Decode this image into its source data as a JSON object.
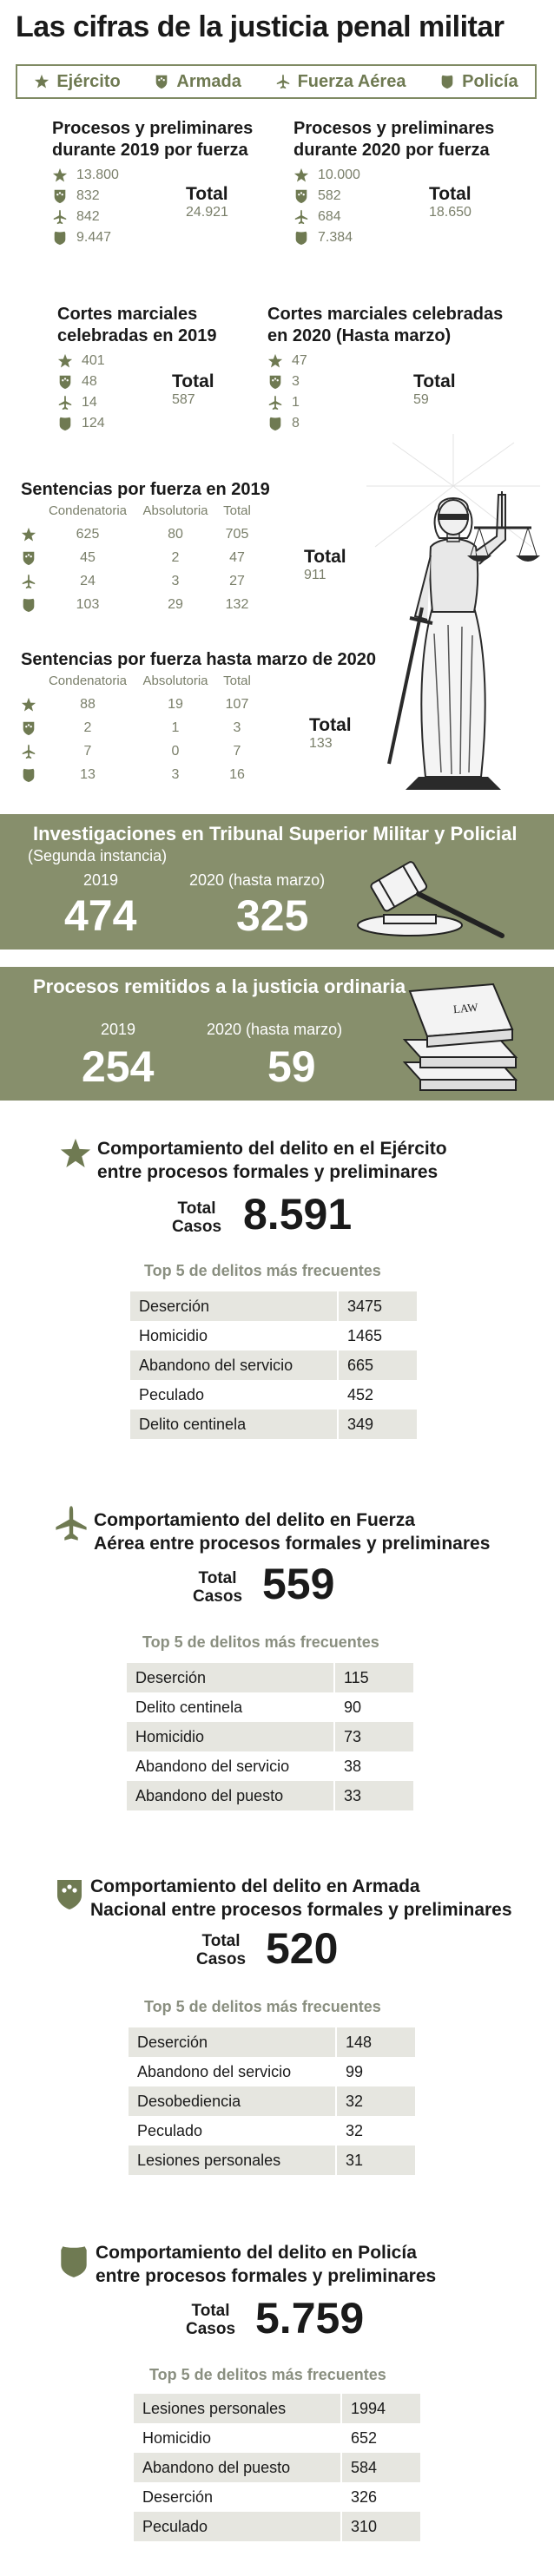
{
  "title": "Las cifras de la justicia penal militar",
  "legend": [
    {
      "label": "Ejército",
      "icon": "star-icon"
    },
    {
      "label": "Armada",
      "icon": "navy-shield-icon"
    },
    {
      "label": "Fuerza Aérea",
      "icon": "airplane-icon"
    },
    {
      "label": "Policía",
      "icon": "police-shield-icon"
    }
  ],
  "colors": {
    "accent": "#878f6c",
    "table_stripe": "#e6e6e0"
  },
  "procesos_2019": {
    "title_1": "Procesos y preliminares",
    "title_2": "durante 2019 por fuerza",
    "values": [
      "13.800",
      "832",
      "842",
      "9.447"
    ],
    "total_label": "Total",
    "total_value": "24.921"
  },
  "procesos_2020": {
    "title_1": "Procesos y preliminares",
    "title_2": "durante 2020 por fuerza",
    "values": [
      "10.000",
      "582",
      "684",
      "7.384"
    ],
    "total_label": "Total",
    "total_value": "18.650"
  },
  "cortes_2019": {
    "title_1": "Cortes marciales",
    "title_2": "celebradas en 2019",
    "values": [
      "401",
      "48",
      "14",
      "124"
    ],
    "total_label": "Total",
    "total_value": "587"
  },
  "cortes_2020": {
    "title_1": "Cortes marciales celebradas",
    "title_2": "en 2020 (Hasta marzo)",
    "values": [
      "47",
      "3",
      "1",
      "8"
    ],
    "total_label": "Total",
    "total_value": "59"
  },
  "sentencias_2019": {
    "title": "Sentencias por fuerza en 2019",
    "headers": [
      "Condenatoria",
      "Absolutoria",
      "Total"
    ],
    "rows": [
      [
        "625",
        "80",
        "705"
      ],
      [
        "45",
        "2",
        "47"
      ],
      [
        "24",
        "3",
        "27"
      ],
      [
        "103",
        "29",
        "132"
      ]
    ],
    "total_label": "Total",
    "total_value": "911"
  },
  "sentencias_2020": {
    "title": "Sentencias por fuerza hasta marzo de 2020",
    "headers": [
      "Condenatoria",
      "Absolutoria",
      "Total"
    ],
    "rows": [
      [
        "88",
        "19",
        "107"
      ],
      [
        "2",
        "1",
        "3"
      ],
      [
        "7",
        "0",
        "7"
      ],
      [
        "13",
        "3",
        "16"
      ]
    ],
    "total_label": "Total",
    "total_value": "133"
  },
  "investigaciones": {
    "title": "Investigaciones en Tribunal Superior Militar y Policial",
    "subtitle": "(Segunda instancia)",
    "label_2019": "2019",
    "value_2019": "474",
    "label_2020": "2020 (hasta marzo)",
    "value_2020": "325"
  },
  "remitidos": {
    "title": "Procesos remitidos a la justicia ordinaria",
    "label_2019": "2019",
    "value_2019": "254",
    "label_2020": "2020 (hasta marzo)",
    "value_2020": "59",
    "book_label": "LAW"
  },
  "comportamiento": [
    {
      "title_1": "Comportamiento del delito en el Ejército",
      "title_2": "entre procesos formales y preliminares",
      "total_1": "Total",
      "total_2": "Casos",
      "total_value": "8.591",
      "top5_label": "Top 5 de delitos más frecuentes",
      "rows": [
        [
          "Deserción",
          "3475"
        ],
        [
          "Homicidio",
          "1465"
        ],
        [
          "Abandono del servicio",
          "665"
        ],
        [
          "Peculado",
          "452"
        ],
        [
          "Delito centinela",
          "349"
        ]
      ]
    },
    {
      "title_1": "Comportamiento del delito en Fuerza",
      "title_2": "Aérea entre procesos formales y preliminares",
      "total_1": "Total",
      "total_2": "Casos",
      "total_value": "559",
      "top5_label": "Top 5 de delitos más frecuentes",
      "rows": [
        [
          "Deserción",
          "115"
        ],
        [
          "Delito centinela",
          "90"
        ],
        [
          "Homicidio",
          "73"
        ],
        [
          "Abandono del servicio",
          "38"
        ],
        [
          "Abandono del puesto",
          "33"
        ]
      ]
    },
    {
      "title_1": "Comportamiento del delito en Armada",
      "title_2": "Nacional entre procesos formales y preliminares",
      "total_1": "Total",
      "total_2": "Casos",
      "total_value": "520",
      "top5_label": "Top 5 de delitos más frecuentes",
      "rows": [
        [
          "Deserción",
          "148"
        ],
        [
          "Abandono del servicio",
          "99"
        ],
        [
          "Desobediencia",
          "32"
        ],
        [
          "Peculado",
          "32"
        ],
        [
          "Lesiones personales",
          "31"
        ]
      ]
    },
    {
      "title_1": "Comportamiento del delito en Policía",
      "title_2": "entre procesos formales y preliminares",
      "total_1": "Total",
      "total_2": "Casos",
      "total_value": "5.759",
      "top5_label": "Top 5 de delitos más frecuentes",
      "rows": [
        [
          "Lesiones personales",
          "1994"
        ],
        [
          "Homicidio",
          "652"
        ],
        [
          "Abandono del puesto",
          "584"
        ],
        [
          "Deserción",
          "326"
        ],
        [
          "Peculado",
          "310"
        ]
      ]
    }
  ],
  "chart_data": [
    {
      "type": "table",
      "title": "Procesos y preliminares durante 2019 por fuerza",
      "categories": [
        "Ejército",
        "Armada",
        "Fuerza Aérea",
        "Policía"
      ],
      "values": [
        13800,
        832,
        842,
        9447
      ],
      "total": 24921
    },
    {
      "type": "table",
      "title": "Procesos y preliminares durante 2020 por fuerza",
      "categories": [
        "Ejército",
        "Armada",
        "Fuerza Aérea",
        "Policía"
      ],
      "values": [
        10000,
        582,
        684,
        7384
      ],
      "total": 18650
    },
    {
      "type": "table",
      "title": "Cortes marciales celebradas en 2019",
      "categories": [
        "Ejército",
        "Armada",
        "Fuerza Aérea",
        "Policía"
      ],
      "values": [
        401,
        48,
        14,
        124
      ],
      "total": 587
    },
    {
      "type": "table",
      "title": "Cortes marciales celebradas en 2020 (Hasta marzo)",
      "categories": [
        "Ejército",
        "Armada",
        "Fuerza Aérea",
        "Policía"
      ],
      "values": [
        47,
        3,
        1,
        8
      ],
      "total": 59
    },
    {
      "type": "table",
      "title": "Sentencias por fuerza en 2019",
      "categories": [
        "Ejército",
        "Armada",
        "Fuerza Aérea",
        "Policía"
      ],
      "series": [
        {
          "name": "Condenatoria",
          "values": [
            625,
            45,
            24,
            103
          ]
        },
        {
          "name": "Absolutoria",
          "values": [
            80,
            2,
            3,
            29
          ]
        },
        {
          "name": "Total",
          "values": [
            705,
            47,
            27,
            132
          ]
        }
      ],
      "total": 911
    },
    {
      "type": "table",
      "title": "Sentencias por fuerza hasta marzo de 2020",
      "categories": [
        "Ejército",
        "Armada",
        "Fuerza Aérea",
        "Policía"
      ],
      "series": [
        {
          "name": "Condenatoria",
          "values": [
            88,
            2,
            7,
            13
          ]
        },
        {
          "name": "Absolutoria",
          "values": [
            19,
            1,
            0,
            3
          ]
        },
        {
          "name": "Total",
          "values": [
            107,
            3,
            7,
            16
          ]
        }
      ],
      "total": 133
    },
    {
      "type": "table",
      "title": "Investigaciones en Tribunal Superior Militar y Policial",
      "categories": [
        "2019",
        "2020 (hasta marzo)"
      ],
      "values": [
        474,
        325
      ]
    },
    {
      "type": "table",
      "title": "Procesos remitidos a la justicia ordinaria",
      "categories": [
        "2019",
        "2020 (hasta marzo)"
      ],
      "values": [
        254,
        59
      ]
    },
    {
      "type": "table",
      "title": "Comportamiento del delito en el Ejército entre procesos formales y preliminares",
      "categories": [
        "Deserción",
        "Homicidio",
        "Abandono del servicio",
        "Peculado",
        "Delito centinela"
      ],
      "values": [
        3475,
        1465,
        665,
        452,
        349
      ],
      "total": 8591
    },
    {
      "type": "table",
      "title": "Comportamiento del delito en Fuerza Aérea entre procesos formales y preliminares",
      "categories": [
        "Deserción",
        "Delito centinela",
        "Homicidio",
        "Abandono del servicio",
        "Abandono del puesto"
      ],
      "values": [
        115,
        90,
        73,
        38,
        33
      ],
      "total": 559
    },
    {
      "type": "table",
      "title": "Comportamiento del delito en Armada Nacional entre procesos formales y preliminares",
      "categories": [
        "Deserción",
        "Abandono del servicio",
        "Desobediencia",
        "Peculado",
        "Lesiones personales"
      ],
      "values": [
        148,
        99,
        32,
        32,
        31
      ],
      "total": 520
    },
    {
      "type": "table",
      "title": "Comportamiento del delito en Policía entre procesos formales y preliminares",
      "categories": [
        "Lesiones personales",
        "Homicidio",
        "Abandono del puesto",
        "Deserción",
        "Peculado"
      ],
      "values": [
        1994,
        652,
        584,
        326,
        310
      ],
      "total": 5759
    }
  ]
}
